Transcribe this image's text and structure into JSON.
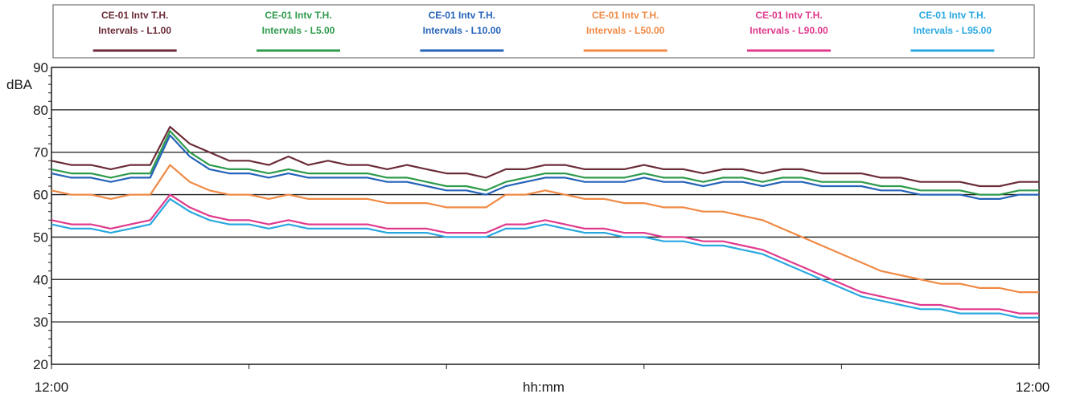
{
  "chart_data": {
    "type": "line",
    "ylabel": "dBA",
    "xlabel": "hh:mm",
    "ylim": [
      20,
      90
    ],
    "y_ticks": [
      20,
      30,
      40,
      50,
      60,
      70,
      80,
      90
    ],
    "x_tick_labels": [
      "12:00",
      "12:00"
    ],
    "grid": "horizontal",
    "legend_position": "top",
    "x": [
      0,
      2,
      4,
      6,
      8,
      10,
      12,
      14,
      16,
      18,
      20,
      22,
      24,
      26,
      28,
      30,
      32,
      34,
      36,
      38,
      40,
      42,
      44,
      46,
      48,
      50,
      52,
      54,
      56,
      58,
      60,
      62,
      64,
      66,
      68,
      70,
      72,
      74,
      76,
      78,
      80,
      82,
      84,
      86,
      88,
      90,
      92,
      94,
      96,
      98,
      100
    ],
    "series": [
      {
        "name": "CE-01 Intv T.H. Intervals - L1.00",
        "color": "#6b2c38",
        "values": [
          68,
          67,
          67,
          66,
          67,
          67,
          76,
          72,
          70,
          68,
          68,
          67,
          69,
          67,
          68,
          67,
          67,
          66,
          67,
          66,
          65,
          65,
          64,
          66,
          66,
          67,
          67,
          66,
          66,
          66,
          67,
          66,
          66,
          65,
          66,
          66,
          65,
          66,
          66,
          65,
          65,
          65,
          64,
          64,
          63,
          63,
          63,
          62,
          62,
          63,
          63
        ]
      },
      {
        "name": "CE-01 Intv T.H. Intervals - L5.00",
        "color": "#2e9a4b",
        "values": [
          66,
          65,
          65,
          64,
          65,
          65,
          75,
          70,
          67,
          66,
          66,
          65,
          66,
          65,
          65,
          65,
          65,
          64,
          64,
          63,
          62,
          62,
          61,
          63,
          64,
          65,
          65,
          64,
          64,
          64,
          65,
          64,
          64,
          63,
          64,
          64,
          63,
          64,
          64,
          63,
          63,
          63,
          62,
          62,
          61,
          61,
          61,
          60,
          60,
          61,
          61
        ]
      },
      {
        "name": "CE-01 Intv T.H. Intervals - L10.00",
        "color": "#2563b8",
        "values": [
          65,
          64,
          64,
          63,
          64,
          64,
          74,
          69,
          66,
          65,
          65,
          64,
          65,
          64,
          64,
          64,
          64,
          63,
          63,
          62,
          61,
          61,
          60,
          62,
          63,
          64,
          64,
          63,
          63,
          63,
          64,
          63,
          63,
          62,
          63,
          63,
          62,
          63,
          63,
          62,
          62,
          62,
          61,
          61,
          60,
          60,
          60,
          59,
          59,
          60,
          60
        ]
      },
      {
        "name": "CE-01 Intv T.H. Intervals - L50.00",
        "color": "#f08a45",
        "values": [
          61,
          60,
          60,
          59,
          60,
          60,
          67,
          63,
          61,
          60,
          60,
          59,
          60,
          59,
          59,
          59,
          59,
          58,
          58,
          58,
          57,
          57,
          57,
          60,
          60,
          61,
          60,
          59,
          59,
          58,
          58,
          57,
          57,
          56,
          56,
          55,
          54,
          52,
          50,
          48,
          46,
          44,
          42,
          41,
          40,
          39,
          39,
          38,
          38,
          37,
          37
        ]
      },
      {
        "name": "CE-01 Intv T.H. Intervals - L90.00",
        "color": "#e03a8c",
        "values": [
          54,
          53,
          53,
          52,
          53,
          54,
          60,
          57,
          55,
          54,
          54,
          53,
          54,
          53,
          53,
          53,
          53,
          52,
          52,
          52,
          51,
          51,
          51,
          53,
          53,
          54,
          53,
          52,
          52,
          51,
          51,
          50,
          50,
          49,
          49,
          48,
          47,
          45,
          43,
          41,
          39,
          37,
          36,
          35,
          34,
          34,
          33,
          33,
          33,
          32,
          32
        ]
      },
      {
        "name": "CE-01 Intv T.H. Intervals - L95.00",
        "color": "#29a8e0",
        "values": [
          53,
          52,
          52,
          51,
          52,
          53,
          59,
          56,
          54,
          53,
          53,
          52,
          53,
          52,
          52,
          52,
          52,
          51,
          51,
          51,
          50,
          50,
          50,
          52,
          52,
          53,
          52,
          51,
          51,
          50,
          50,
          49,
          49,
          48,
          48,
          47,
          46,
          44,
          42,
          40,
          38,
          36,
          35,
          34,
          33,
          33,
          32,
          32,
          32,
          31,
          31
        ]
      }
    ]
  }
}
